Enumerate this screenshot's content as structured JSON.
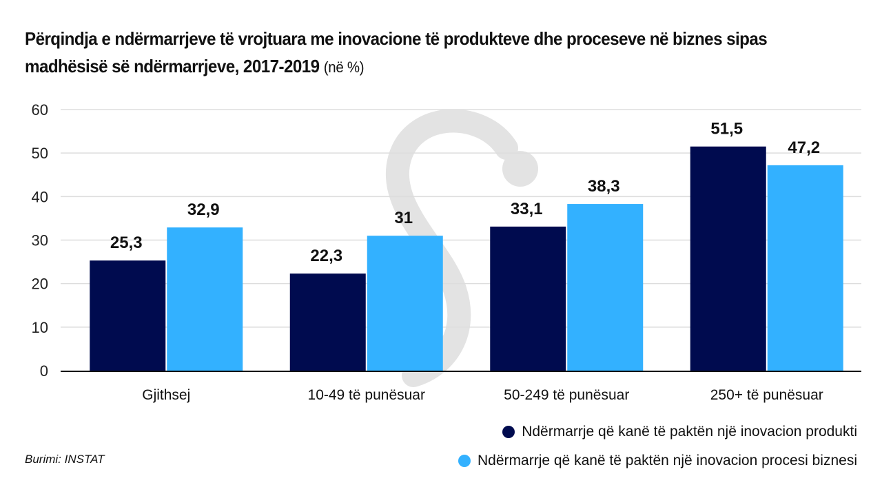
{
  "title": {
    "main": "Përqindja e ndërmarrjeve të vrojtuara me inovacione të produkteve dhe proceseve në biznes sipas madhësisë së ndërmarrjeve, 2017-2019",
    "unit": "(në %)"
  },
  "source": "Burimi: INSTAT",
  "colors": {
    "product": "#000B4F",
    "process": "#33B1FF",
    "grid": "#dddddd",
    "axis": "#111111",
    "watermark": "#e3e3e3"
  },
  "watermark": {
    "glyph": "S",
    "meaning": "INSTAT logo"
  },
  "chart_data": {
    "type": "bar",
    "title": "Përqindja e ndërmarrjeve të vrojtuara me inovacione të produkteve dhe proceseve në biznes sipas madhësisë së ndërmarrjeve, 2017-2019 (në %)",
    "xlabel": "",
    "ylabel": "",
    "categories": [
      "Gjithsej",
      "10-49 të punësuar",
      "50-249 të punësuar",
      "250+ të punësuar"
    ],
    "series": [
      {
        "name": "Ndërmarrje që kanë të paktën një inovacion produkti",
        "values": [
          25.3,
          22.3,
          33.1,
          51.5
        ],
        "labels": [
          "25,3",
          "22,3",
          "33,1",
          "51,5"
        ]
      },
      {
        "name": "Ndërmarrje që kanë të paktën një inovacion procesi biznesi",
        "values": [
          32.9,
          31,
          38.3,
          47.2
        ],
        "labels": [
          "32,9",
          "31",
          "38,3",
          "47,2"
        ]
      }
    ],
    "ylim": [
      0,
      60
    ],
    "yticks": [
      0,
      10,
      20,
      30,
      40,
      50,
      60
    ],
    "grid": true,
    "legend_position": "bottom-right"
  }
}
